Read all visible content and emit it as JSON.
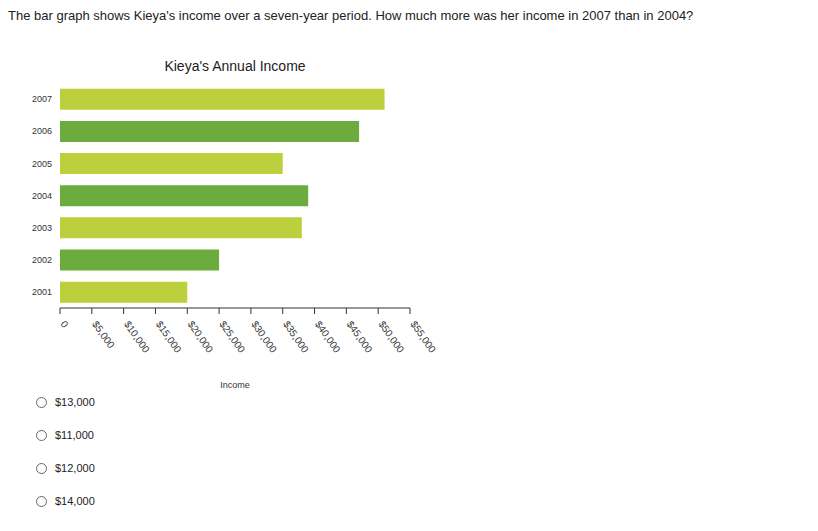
{
  "question": "The bar graph shows Kieya's income over a seven-year period. How much more was her income in 2007 than in 2004?",
  "choices": [
    "$13,000",
    "$11,000",
    "$12,000",
    "$14,000"
  ],
  "chart_data": {
    "type": "bar",
    "orientation": "horizontal",
    "title": "Kieya's Annual Income",
    "x_label": "Income",
    "categories": [
      "2007",
      "2006",
      "2005",
      "2004",
      "2003",
      "2002",
      "2001"
    ],
    "values": [
      51000,
      47000,
      35000,
      39000,
      38000,
      25000,
      20000
    ],
    "colors": [
      "#bccf3c",
      "#6cab3d",
      "#bccf3c",
      "#6cab3d",
      "#bccf3c",
      "#6cab3d",
      "#bccf3c"
    ],
    "xlim": [
      0,
      55000
    ],
    "xticks": [
      0,
      {
        "value": 5000,
        "label": "$5,000"
      },
      {
        "value": 10000,
        "label": "$10,000"
      },
      {
        "value": 15000,
        "label": "$15,000"
      },
      {
        "value": 20000,
        "label": "$20,000"
      },
      {
        "value": 25000,
        "label": "$25,000"
      },
      {
        "value": 30000,
        "label": "$30,000"
      },
      {
        "value": 35000,
        "label": "$35,000"
      },
      {
        "value": 40000,
        "label": "$40,000"
      },
      {
        "value": 45000,
        "label": "$45,000"
      },
      {
        "value": 50000,
        "label": "$50,000"
      },
      {
        "value": 55000,
        "label": "$55,000"
      }
    ],
    "grid": false
  }
}
